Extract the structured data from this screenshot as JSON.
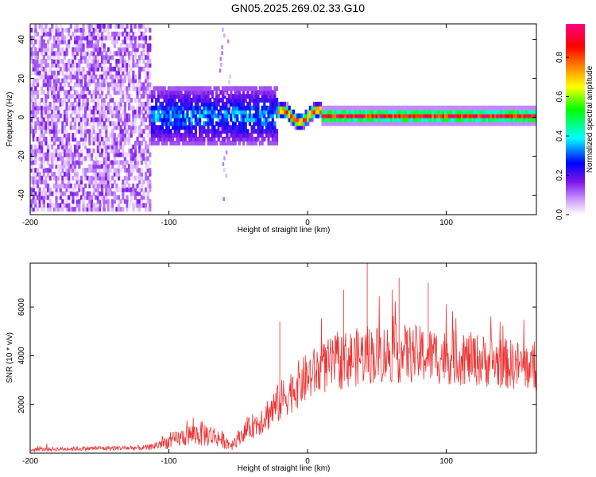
{
  "title": "GN05.2025.269.02.33.G10",
  "chart_data": [
    {
      "type": "heatmap",
      "name": "spectrogram",
      "title": "GN05.2025.269.02.33.G10",
      "xlabel": "Height of straight line (km)",
      "ylabel": "Frequency (Hz)",
      "xlim": [
        -200,
        165
      ],
      "ylim": [
        -50,
        48
      ],
      "xticks": [
        -200,
        -100,
        0,
        100
      ],
      "yticks": [
        -40,
        -20,
        0,
        20,
        40
      ],
      "colorbar": {
        "label": "Normalized spectral amplitude",
        "range": [
          0,
          0.97
        ],
        "ticks": [
          0,
          0.2,
          0.4,
          0.6,
          0.8
        ],
        "tick_labels": [
          "0.0",
          "0.2",
          "0.4",
          "0.6",
          "0.8"
        ],
        "colormap": [
          "#ffffff",
          "#cc99ff",
          "#7d18e8",
          "#0000ff",
          "#00ffff",
          "#00ff00",
          "#ffff00",
          "#ff8000",
          "#ff0000",
          "#ff0080"
        ]
      },
      "regions": [
        {
          "x_range": [
            -200,
            -113
          ],
          "freq_half_width": 48,
          "amplitude": [
            0.03,
            0.22
          ],
          "description": "noise"
        },
        {
          "x_range": [
            -113,
            -22
          ],
          "freq_half_width": 15,
          "amplitude": [
            0.15,
            0.45
          ],
          "description": "onset"
        },
        {
          "x_range": [
            -22,
            165
          ],
          "freq_half_width": 4,
          "amplitude": [
            0.4,
            0.95
          ],
          "center_freq": 0,
          "description": "carrier line"
        }
      ]
    },
    {
      "type": "line",
      "name": "snr",
      "xlabel": "Height of straight line (km)",
      "ylabel": "SNR (10 * v/v)",
      "xlim": [
        -200,
        165
      ],
      "ylim": [
        0,
        7800
      ],
      "xticks": [
        -200,
        -100,
        0,
        100
      ],
      "yticks": [
        2000,
        4000,
        6000
      ],
      "color": "#ee3333",
      "envelope": {
        "x": [
          -200,
          -150,
          -115,
          -105,
          -95,
          -85,
          -75,
          -65,
          -55,
          -45,
          -35,
          -25,
          -15,
          -5,
          5,
          15,
          25,
          40,
          60,
          80,
          100,
          120,
          140,
          165
        ],
        "mean": [
          150,
          200,
          220,
          400,
          550,
          750,
          800,
          650,
          350,
          900,
          1300,
          1800,
          2400,
          2900,
          3300,
          3600,
          3800,
          4000,
          4100,
          4050,
          3950,
          3850,
          3700,
          3500
        ],
        "spread": [
          80,
          100,
          110,
          250,
          350,
          450,
          550,
          400,
          250,
          400,
          600,
          800,
          900,
          1000,
          1050,
          1100,
          1200,
          1200,
          1250,
          1200,
          1150,
          1100,
          1050,
          1000
        ]
      },
      "peaks": [
        {
          "x": 43,
          "y": 7800
        },
        {
          "x": 66,
          "y": 7200
        },
        {
          "x": 26,
          "y": 6700
        },
        {
          "x": 87,
          "y": 7000
        },
        {
          "x": -20,
          "y": 5400
        }
      ]
    }
  ]
}
